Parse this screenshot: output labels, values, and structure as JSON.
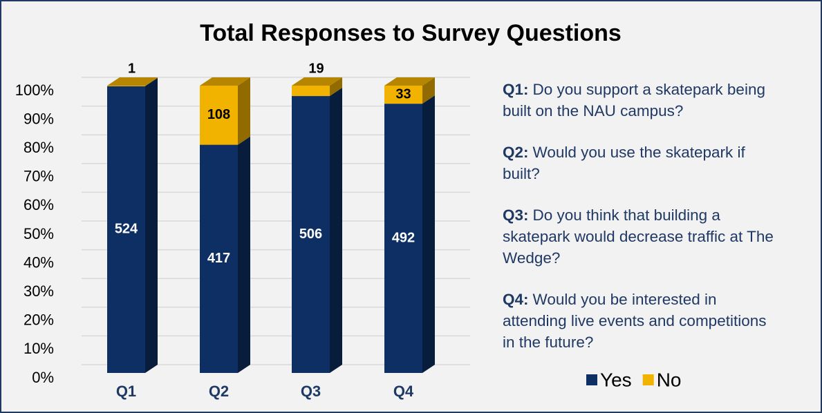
{
  "chart_data": {
    "type": "bar",
    "stacking": "percent",
    "title": "Total Responses to Survey Questions",
    "categories": [
      "Q1",
      "Q2",
      "Q3",
      "Q4"
    ],
    "series": [
      {
        "name": "Yes",
        "color": "#0d2f63",
        "values": [
          524,
          417,
          506,
          492
        ]
      },
      {
        "name": "No",
        "color": "#f2b300",
        "values": [
          1,
          108,
          19,
          33
        ]
      }
    ],
    "ylim": [
      0,
      100
    ],
    "yticks": [
      {
        "value": 0,
        "label": "0%"
      },
      {
        "value": 10,
        "label": "10%"
      },
      {
        "value": 20,
        "label": "20%"
      },
      {
        "value": 30,
        "label": "30%"
      },
      {
        "value": 40,
        "label": "40%"
      },
      {
        "value": 50,
        "label": "50%"
      },
      {
        "value": 60,
        "label": "60%"
      },
      {
        "value": 70,
        "label": "70%"
      },
      {
        "value": 80,
        "label": "80%"
      },
      {
        "value": 90,
        "label": "90%"
      },
      {
        "value": 100,
        "label": "100%"
      }
    ],
    "grid": true,
    "legend": "bottom-right",
    "notes": [
      {
        "label": "Q1:",
        "text": "Do you support a skatepark being built on the NAU campus?"
      },
      {
        "label": "Q2:",
        "text": "Would you use the skatepark if built?"
      },
      {
        "label": "Q3:",
        "text": "Do you think that building a skatepark would decrease traffic at The Wedge?"
      },
      {
        "label": "Q4:",
        "text": "Would you be interested in attending live events and competitions in the future?"
      }
    ]
  }
}
